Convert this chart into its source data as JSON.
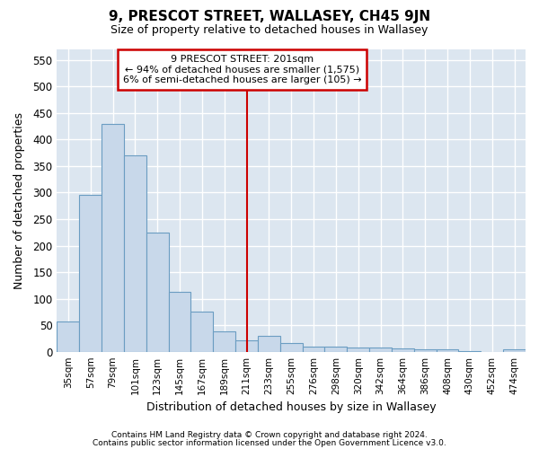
{
  "title": "9, PRESCOT STREET, WALLASEY, CH45 9JN",
  "subtitle": "Size of property relative to detached houses in Wallasey",
  "xlabel": "Distribution of detached houses by size in Wallasey",
  "ylabel": "Number of detached properties",
  "annotation_line1": "9 PRESCOT STREET: 201sqm",
  "annotation_line2": "← 94% of detached houses are smaller (1,575)",
  "annotation_line3": "6% of semi-detached houses are larger (105) →",
  "footer1": "Contains HM Land Registry data © Crown copyright and database right 2024.",
  "footer2": "Contains public sector information licensed under the Open Government Licence v3.0.",
  "bar_color": "#c8d8ea",
  "bar_edge_color": "#6b9dc2",
  "vline_color": "#cc0000",
  "annotation_box_edge_color": "#cc0000",
  "fig_bg_color": "#ffffff",
  "plot_bg_color": "#dce6f0",
  "grid_color": "#ffffff",
  "bins": [
    "35sqm",
    "57sqm",
    "79sqm",
    "101sqm",
    "123sqm",
    "145sqm",
    "167sqm",
    "189sqm",
    "211sqm",
    "233sqm",
    "255sqm",
    "276sqm",
    "298sqm",
    "320sqm",
    "342sqm",
    "364sqm",
    "386sqm",
    "408sqm",
    "430sqm",
    "452sqm",
    "474sqm"
  ],
  "values": [
    57,
    295,
    430,
    370,
    225,
    113,
    75,
    38,
    22,
    30,
    17,
    10,
    10,
    8,
    8,
    6,
    5,
    5,
    1,
    0,
    5
  ],
  "ylim": [
    0,
    570
  ],
  "yticks": [
    0,
    50,
    100,
    150,
    200,
    250,
    300,
    350,
    400,
    450,
    500,
    550
  ],
  "vline_x": 8.0
}
